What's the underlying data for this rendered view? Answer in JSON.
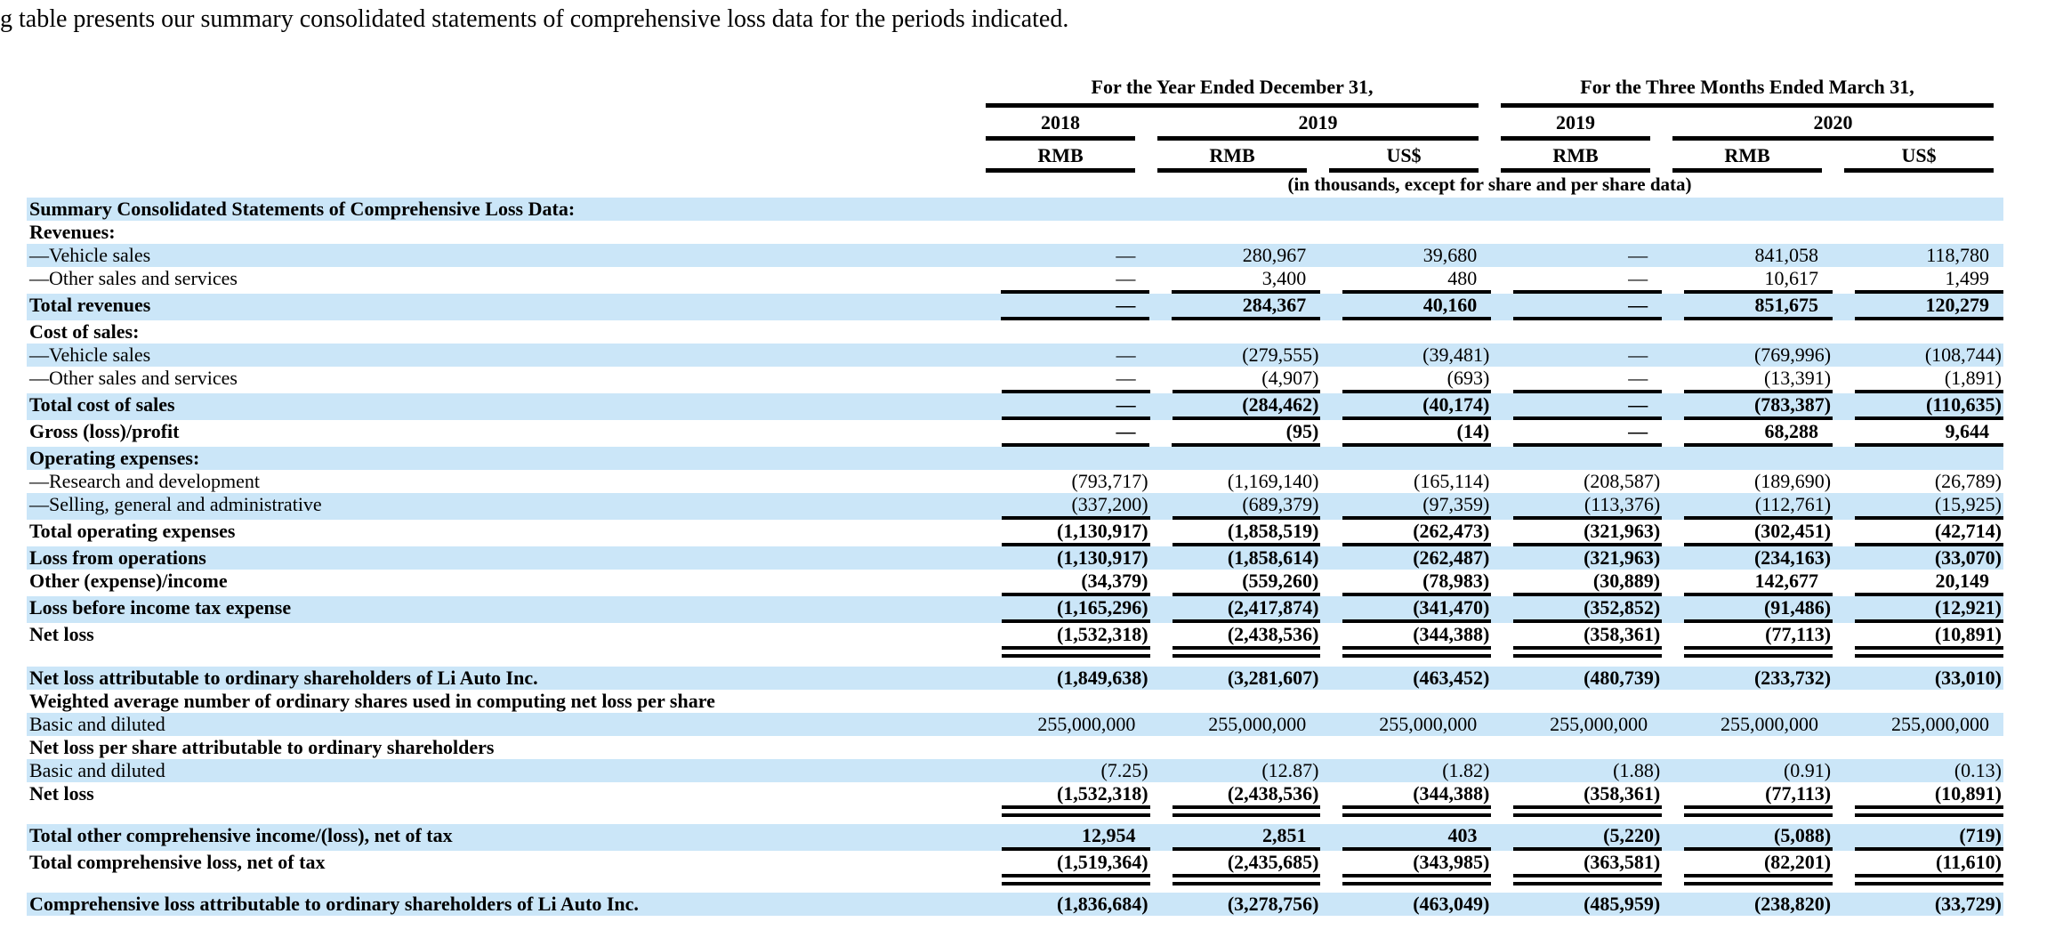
{
  "intro_text": "g table presents our summary consolidated statements of comprehensive loss data for the periods indicated.",
  "colors": {
    "row_highlight": "#cbe6f8",
    "text": "#000000"
  },
  "table": {
    "header": {
      "group1": "For the Year Ended December 31,",
      "group2": "For the Three Months Ended March 31,",
      "years": [
        "2018",
        "2019",
        "2019",
        "2020"
      ],
      "currencies": [
        "RMB",
        "RMB",
        "US$",
        "RMB",
        "RMB",
        "US$"
      ],
      "note": "(in thousands, except for share and per share data)"
    },
    "rows": [
      {
        "label": "Summary Consolidated Statements of Comprehensive Loss Data:",
        "bold": true,
        "shade": true,
        "border": "none",
        "values": [
          "",
          "",
          "",
          "",
          "",
          ""
        ]
      },
      {
        "label": "Revenues:",
        "bold": true,
        "shade": false,
        "border": "none",
        "values": [
          "",
          "",
          "",
          "",
          "",
          ""
        ]
      },
      {
        "label": "—Vehicle sales",
        "bold": false,
        "shade": true,
        "border": "none",
        "values": [
          "—",
          "280,967",
          "39,680",
          "—",
          "841,058",
          "118,780"
        ]
      },
      {
        "label": "—Other sales and services",
        "bold": false,
        "shade": false,
        "border": "single",
        "values": [
          "—",
          "3,400",
          "480",
          "—",
          "10,617",
          "1,499"
        ]
      },
      {
        "label": "Total revenues",
        "bold": true,
        "shade": true,
        "border": "single",
        "values": [
          "—",
          "284,367",
          "40,160",
          "—",
          "851,675",
          "120,279"
        ]
      },
      {
        "label": "Cost of sales:",
        "bold": true,
        "shade": false,
        "border": "none",
        "values": [
          "",
          "",
          "",
          "",
          "",
          ""
        ]
      },
      {
        "label": "—Vehicle sales",
        "bold": false,
        "shade": true,
        "border": "none",
        "values": [
          "—",
          "(279,555)",
          "(39,481)",
          "—",
          "(769,996)",
          "(108,744)"
        ]
      },
      {
        "label": "—Other sales and services",
        "bold": false,
        "shade": false,
        "border": "single",
        "values": [
          "—",
          "(4,907)",
          "(693)",
          "—",
          "(13,391)",
          "(1,891)"
        ]
      },
      {
        "label": "Total cost of sales",
        "bold": true,
        "shade": true,
        "border": "single",
        "values": [
          "—",
          "(284,462)",
          "(40,174)",
          "—",
          "(783,387)",
          "(110,635)"
        ]
      },
      {
        "label": "Gross (loss)/profit",
        "bold": true,
        "shade": false,
        "border": "single",
        "values": [
          "—",
          "(95)",
          "(14)",
          "—",
          "68,288",
          "9,644"
        ]
      },
      {
        "label": "Operating expenses:",
        "bold": true,
        "shade": true,
        "border": "none",
        "values": [
          "",
          "",
          "",
          "",
          "",
          ""
        ]
      },
      {
        "label": "—Research and development",
        "bold": false,
        "shade": false,
        "border": "none",
        "values": [
          "(793,717)",
          "(1,169,140)",
          "(165,114)",
          "(208,587)",
          "(189,690)",
          "(26,789)"
        ]
      },
      {
        "label": "—Selling, general and administrative",
        "bold": false,
        "shade": true,
        "border": "single",
        "values": [
          "(337,200)",
          "(689,379)",
          "(97,359)",
          "(113,376)",
          "(112,761)",
          "(15,925)"
        ]
      },
      {
        "label": "Total operating expenses",
        "bold": true,
        "shade": false,
        "border": "single",
        "values": [
          "(1,130,917)",
          "(1,858,519)",
          "(262,473)",
          "(321,963)",
          "(302,451)",
          "(42,714)"
        ]
      },
      {
        "label": "Loss from operations",
        "bold": true,
        "shade": true,
        "border": "none",
        "values": [
          "(1,130,917)",
          "(1,858,614)",
          "(262,487)",
          "(321,963)",
          "(234,163)",
          "(33,070)"
        ]
      },
      {
        "label": "Other (expense)/income",
        "bold": true,
        "shade": false,
        "border": "single",
        "values": [
          "(34,379)",
          "(559,260)",
          "(78,983)",
          "(30,889)",
          "142,677",
          "20,149"
        ]
      },
      {
        "label": "Loss before income tax expense",
        "bold": true,
        "shade": true,
        "border": "single",
        "values": [
          "(1,165,296)",
          "(2,417,874)",
          "(341,470)",
          "(352,852)",
          "(91,486)",
          "(12,921)"
        ]
      },
      {
        "label": "Net loss",
        "bold": true,
        "shade": false,
        "border": "double",
        "gap_after": 10,
        "values": [
          "(1,532,318)",
          "(2,438,536)",
          "(344,388)",
          "(358,361)",
          "(77,113)",
          "(10,891)"
        ]
      },
      {
        "label": "Net loss attributable to ordinary shareholders of Li Auto Inc.",
        "bold": true,
        "shade": true,
        "border": "none",
        "values": [
          "(1,849,638)",
          "(3,281,607)",
          "(463,452)",
          "(480,739)",
          "(233,732)",
          "(33,010)"
        ]
      },
      {
        "label": "Weighted average number of ordinary shares used in computing net loss per share",
        "bold": true,
        "shade": false,
        "border": "none",
        "values": [
          "",
          "",
          "",
          "",
          "",
          ""
        ]
      },
      {
        "label": "Basic and diluted",
        "bold": false,
        "shade": true,
        "border": "none",
        "values": [
          "255,000,000",
          "255,000,000",
          "255,000,000",
          "255,000,000",
          "255,000,000",
          "255,000,000"
        ]
      },
      {
        "label": "Net loss per share attributable to ordinary shareholders",
        "bold": true,
        "shade": false,
        "border": "none",
        "values": [
          "",
          "",
          "",
          "",
          "",
          ""
        ]
      },
      {
        "label": "Basic and diluted",
        "bold": false,
        "shade": true,
        "border": "none",
        "values": [
          "(7.25)",
          "(12.87)",
          "(1.82)",
          "(1.88)",
          "(0.91)",
          "(0.13)"
        ]
      },
      {
        "label": "Net loss",
        "bold": true,
        "shade": false,
        "border": "double",
        "gap_after": 8,
        "values": [
          "(1,532,318)",
          "(2,438,536)",
          "(344,388)",
          "(358,361)",
          "(77,113)",
          "(10,891)"
        ]
      },
      {
        "label": "Total other comprehensive income/(loss), net of tax",
        "bold": true,
        "shade": true,
        "border": "single",
        "values": [
          "12,954",
          "2,851",
          "403",
          "(5,220)",
          "(5,088)",
          "(719)"
        ]
      },
      {
        "label": "Total comprehensive loss, net of tax",
        "bold": true,
        "shade": false,
        "border": "double",
        "gap_after": 8,
        "values": [
          "(1,519,364)",
          "(2,435,685)",
          "(343,985)",
          "(363,581)",
          "(82,201)",
          "(11,610)"
        ]
      },
      {
        "label": "Comprehensive loss attributable to ordinary shareholders of Li Auto Inc.",
        "bold": true,
        "shade": true,
        "border": "none",
        "values": [
          "(1,836,684)",
          "(3,278,756)",
          "(463,049)",
          "(485,959)",
          "(238,820)",
          "(33,729)"
        ]
      }
    ]
  }
}
